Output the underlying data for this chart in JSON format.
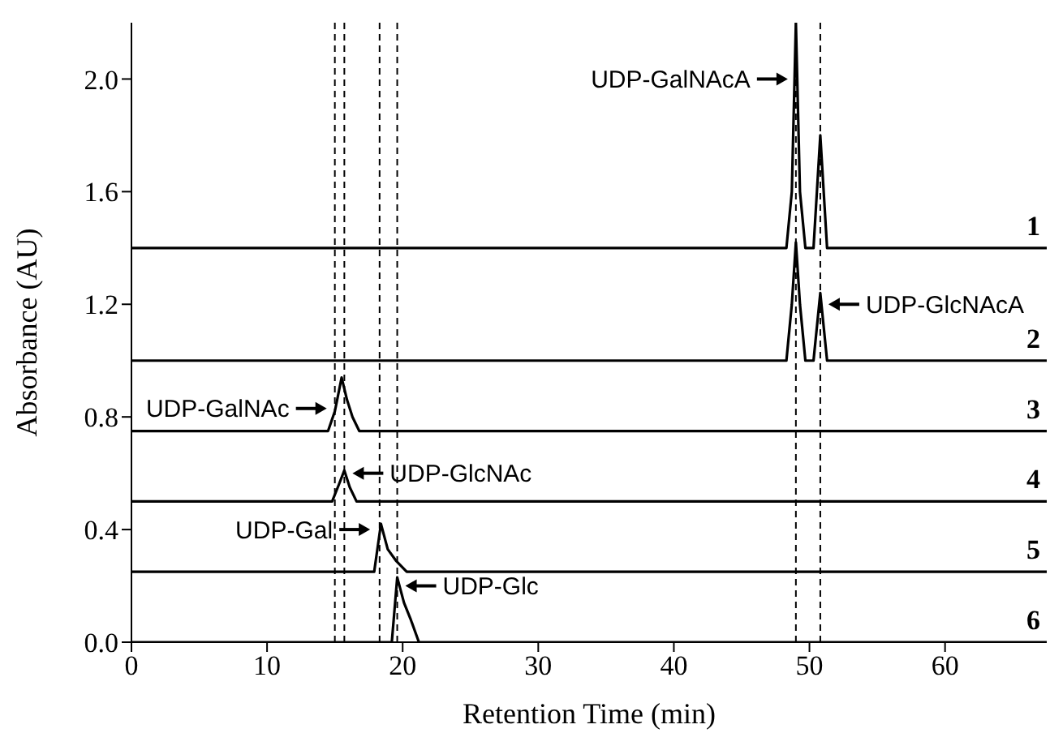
{
  "chart_data": {
    "type": "line",
    "xlabel": "Retention Time (min)",
    "ylabel": "Absorbance (AU)",
    "xlim": [
      0,
      67.5
    ],
    "xticks": [
      0,
      10,
      20,
      30,
      40,
      50,
      60
    ],
    "ylim": [
      0,
      2.2
    ],
    "yticks": [
      {
        "value": 0,
        "label": "0.0"
      },
      {
        "value": 0.4,
        "label": "0.4"
      },
      {
        "value": 0.8,
        "label": "0.8"
      },
      {
        "value": 1.2,
        "label": "1.2"
      },
      {
        "value": 1.6,
        "label": "1.6"
      },
      {
        "value": 2.0,
        "label": "2.0"
      }
    ],
    "grid": false,
    "legend": false,
    "marker": "none",
    "line_style": "solid",
    "series": [
      {
        "name": "1",
        "color": "#000000",
        "x": [
          0,
          48.3,
          48.7,
          49.0,
          49.3,
          49.7,
          50.3,
          50.8,
          51.3,
          67.5
        ],
        "values": [
          1.4,
          1.4,
          1.6,
          2.2,
          1.6,
          1.4,
          1.4,
          1.8,
          1.4,
          1.4
        ]
      },
      {
        "name": "2",
        "color": "#000000",
        "x": [
          0,
          48.3,
          48.7,
          49.0,
          49.3,
          49.7,
          50.3,
          50.8,
          51.3,
          67.5
        ],
        "values": [
          1.0,
          1.0,
          1.2,
          1.42,
          1.2,
          1.0,
          1.0,
          1.24,
          1.0,
          1.0
        ]
      },
      {
        "name": "3",
        "color": "#000000",
        "x": [
          0,
          14.5,
          15.0,
          15.5,
          15.9,
          16.3,
          16.8,
          67.5
        ],
        "values": [
          0.75,
          0.75,
          0.82,
          0.94,
          0.86,
          0.8,
          0.75,
          0.75
        ]
      },
      {
        "name": "4",
        "color": "#000000",
        "x": [
          0,
          14.8,
          15.3,
          15.7,
          16.1,
          16.6,
          67.5
        ],
        "values": [
          0.5,
          0.5,
          0.56,
          0.61,
          0.55,
          0.5,
          0.5
        ]
      },
      {
        "name": "5",
        "color": "#000000",
        "x": [
          0,
          17.9,
          18.4,
          18.9,
          19.5,
          20.3,
          67.5
        ],
        "values": [
          0.25,
          0.25,
          0.42,
          0.33,
          0.29,
          0.25,
          0.25
        ]
      },
      {
        "name": "6",
        "color": "#000000",
        "x": [
          0,
          19.2,
          19.6,
          20.1,
          20.6,
          21.2,
          67.5
        ],
        "values": [
          0,
          0,
          0.23,
          0.14,
          0.08,
          0,
          0
        ]
      }
    ],
    "ref_lines": [
      {
        "axis": "x",
        "value": 49.0,
        "color": "#000000",
        "line_style": "dashed"
      },
      {
        "axis": "x",
        "value": 50.8,
        "color": "#000000",
        "line_style": "dashed"
      },
      {
        "axis": "x",
        "value": 15.0,
        "color": "#000000",
        "line_style": "dashed"
      },
      {
        "axis": "x",
        "value": 15.7,
        "color": "#000000",
        "line_style": "dashed"
      },
      {
        "axis": "x",
        "value": 18.3,
        "color": "#000000",
        "line_style": "dashed"
      },
      {
        "axis": "x",
        "value": 19.6,
        "color": "#000000",
        "line_style": "dashed"
      }
    ],
    "annotations": [
      {
        "text": "UDP-GalNAcA",
        "x": 49.0,
        "y": 2.0
      },
      {
        "text": "UDP-GlcNAcA",
        "x": 50.8,
        "y": 1.2
      },
      {
        "text": "UDP-GalNAc",
        "x": 15.0,
        "y": 0.83
      },
      {
        "text": "UDP-GlcNAc",
        "x": 15.7,
        "y": 0.6
      },
      {
        "text": "UDP-Gal",
        "x": 18.2,
        "y": 0.4
      },
      {
        "text": "UDP-Glc",
        "x": 19.6,
        "y": 0.2
      }
    ]
  }
}
